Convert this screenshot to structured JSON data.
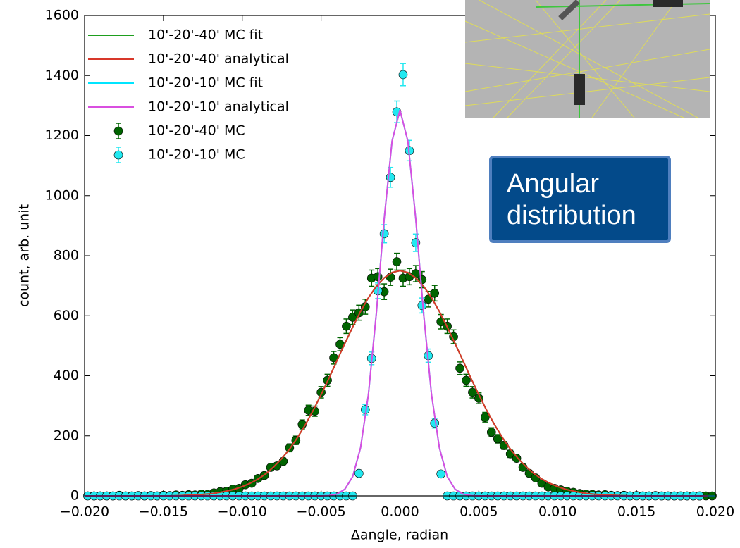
{
  "chart_data": {
    "type": "scatter",
    "xlabel": "Δangle, radian",
    "ylabel": "count, arb. unit",
    "annotation_lines": [
      "Angular",
      "distribution"
    ],
    "xlim": [
      -0.02,
      0.02
    ],
    "ylim": [
      0,
      1600
    ],
    "xticks": [
      {
        "value": -0.02,
        "label": "−0.020"
      },
      {
        "value": -0.015,
        "label": "−0.015"
      },
      {
        "value": -0.01,
        "label": "−0.010"
      },
      {
        "value": -0.005,
        "label": "−0.005"
      },
      {
        "value": 0,
        "label": "0.000"
      },
      {
        "value": 0.005,
        "label": "0.005"
      },
      {
        "value": 0.01,
        "label": "0.010"
      },
      {
        "value": 0.015,
        "label": "0.015"
      },
      {
        "value": 0.02,
        "label": "0.020"
      }
    ],
    "yticks": [
      0,
      200,
      400,
      600,
      800,
      1000,
      1200,
      1400,
      1600
    ],
    "legend": "upper left",
    "curve_x": [
      -0.02,
      -0.0195,
      -0.019,
      -0.0185,
      -0.018,
      -0.0175,
      -0.017,
      -0.0165,
      -0.016,
      -0.0155,
      -0.015,
      -0.0145,
      -0.014,
      -0.0135,
      -0.013,
      -0.0125,
      -0.012,
      -0.0115,
      -0.011,
      -0.0105,
      -0.01,
      -0.0095,
      -0.009,
      -0.0085,
      -0.008,
      -0.0075,
      -0.007,
      -0.0065,
      -0.006,
      -0.0055,
      -0.005,
      -0.0045,
      -0.004,
      -0.0035,
      -0.003,
      -0.0025,
      -0.002,
      -0.0015,
      -0.001,
      -0.0005,
      0,
      0.0005,
      0.001,
      0.0015,
      0.002,
      0.0025,
      0.003,
      0.0035,
      0.004,
      0.0045,
      0.005,
      0.0055,
      0.006,
      0.0065,
      0.007,
      0.0075,
      0.008,
      0.0085,
      0.009,
      0.0095,
      0.01,
      0.0105,
      0.011,
      0.0115,
      0.012,
      0.0125,
      0.013,
      0.0135,
      0.014,
      0.0145,
      0.015,
      0.0155,
      0.016,
      0.0165,
      0.017,
      0.0175,
      0.018,
      0.0185,
      0.019,
      0.0195,
      0.02
    ],
    "point_x": [
      -0.0198,
      -0.0194,
      -0.019,
      -0.0186,
      -0.0182,
      -0.0178,
      -0.0174,
      -0.017,
      -0.0166,
      -0.0162,
      -0.0158,
      -0.0154,
      -0.015,
      -0.0146,
      -0.0142,
      -0.0138,
      -0.0134,
      -0.013,
      -0.0126,
      -0.0122,
      -0.0118,
      -0.0114,
      -0.011,
      -0.0106,
      -0.0102,
      -0.0098,
      -0.0094,
      -0.009,
      -0.0086,
      -0.0082,
      -0.0078,
      -0.0074,
      -0.007,
      -0.0066,
      -0.0062,
      -0.0058,
      -0.0054,
      -0.005,
      -0.0046,
      -0.0042,
      -0.0038,
      -0.0034,
      -0.003,
      -0.0026,
      -0.0022,
      -0.0018,
      -0.0014,
      -0.001,
      -0.0006,
      -0.0002,
      0.0002,
      0.0006,
      0.001,
      0.0014,
      0.0018,
      0.0022,
      0.0026,
      0.003,
      0.0034,
      0.0038,
      0.0042,
      0.0046,
      0.005,
      0.0054,
      0.0058,
      0.0062,
      0.0066,
      0.007,
      0.0074,
      0.0078,
      0.0082,
      0.0086,
      0.009,
      0.0094,
      0.0098,
      0.0102,
      0.0106,
      0.011,
      0.0114,
      0.0118,
      0.0122,
      0.0126,
      0.013,
      0.0134,
      0.0138,
      0.0142,
      0.0146,
      0.015,
      0.0154,
      0.0158,
      0.0162,
      0.0166,
      0.017,
      0.0174,
      0.0178,
      0.0182,
      0.0186,
      0.019,
      0.0194,
      0.0198
    ],
    "series": [
      {
        "name": "10'-20'-40' MC fit",
        "color": "#1e9e1e",
        "style": "line",
        "values": [
          0,
          0,
          0,
          0,
          0,
          0,
          0,
          0,
          0,
          0,
          0,
          0,
          1,
          2,
          3,
          5,
          7,
          11,
          16,
          22,
          31,
          42,
          56,
          74,
          97,
          124,
          156,
          194,
          237,
          285,
          337,
          392,
          450,
          507,
          562,
          614,
          660,
          698,
          726,
          744,
          750,
          744,
          726,
          698,
          660,
          614,
          562,
          507,
          450,
          392,
          337,
          285,
          237,
          194,
          156,
          124,
          97,
          74,
          56,
          42,
          31,
          22,
          16,
          11,
          7,
          5,
          3,
          2,
          1,
          0,
          0,
          0,
          0,
          0,
          0,
          0,
          0,
          0,
          0,
          0,
          0
        ]
      },
      {
        "name": "10'-20'-40' analytical",
        "color": "#d8382a",
        "style": "line",
        "values": [
          0,
          0,
          0,
          0,
          0,
          0,
          0,
          0,
          0,
          0,
          0,
          0,
          1,
          2,
          3,
          5,
          7,
          11,
          16,
          22,
          31,
          42,
          56,
          74,
          97,
          124,
          156,
          194,
          237,
          285,
          337,
          392,
          450,
          507,
          562,
          614,
          660,
          698,
          726,
          744,
          750,
          744,
          726,
          698,
          660,
          614,
          562,
          507,
          450,
          392,
          337,
          285,
          237,
          194,
          156,
          124,
          97,
          74,
          56,
          42,
          31,
          22,
          16,
          11,
          7,
          5,
          3,
          2,
          1,
          0,
          0,
          0,
          0,
          0,
          0,
          0,
          0,
          0,
          0,
          0,
          0
        ]
      },
      {
        "name": "10'-20'-10' MC fit",
        "color": "#00e5ff",
        "style": "line",
        "values": [
          0,
          0,
          0,
          0,
          0,
          0,
          0,
          0,
          0,
          0,
          0,
          0,
          0,
          0,
          0,
          0,
          0,
          0,
          0,
          0,
          0,
          0,
          0,
          0,
          0,
          0,
          0,
          0,
          0,
          0,
          0,
          1,
          6,
          22,
          64,
          160,
          338,
          607,
          923,
          1182,
          1285,
          1182,
          923,
          607,
          338,
          160,
          64,
          22,
          6,
          1,
          0,
          0,
          0,
          0,
          0,
          0,
          0,
          0,
          0,
          0,
          0,
          0,
          0,
          0,
          0,
          0,
          0,
          0,
          0,
          0,
          0,
          0,
          0,
          0,
          0,
          0,
          0,
          0,
          0,
          0,
          0
        ]
      },
      {
        "name": "10'-20'-10' analytical",
        "color": "#d94fe0",
        "style": "line",
        "values": [
          0,
          0,
          0,
          0,
          0,
          0,
          0,
          0,
          0,
          0,
          0,
          0,
          0,
          0,
          0,
          0,
          0,
          0,
          0,
          0,
          0,
          0,
          0,
          0,
          0,
          0,
          0,
          0,
          0,
          0,
          0,
          1,
          6,
          22,
          64,
          160,
          338,
          607,
          923,
          1182,
          1285,
          1182,
          923,
          607,
          338,
          160,
          64,
          22,
          6,
          1,
          0,
          0,
          0,
          0,
          0,
          0,
          0,
          0,
          0,
          0,
          0,
          0,
          0,
          0,
          0,
          0,
          0,
          0,
          0,
          0,
          0,
          0,
          0,
          0,
          0,
          0,
          0,
          0,
          0,
          0
        ]
      },
      {
        "name": "10'-20'-40' MC",
        "color": "#006400",
        "style": "errorbar",
        "values": [
          0,
          0,
          0,
          0,
          0,
          2,
          0,
          0,
          1,
          0,
          1,
          0,
          2,
          1,
          3,
          2,
          4,
          3,
          6,
          5,
          10,
          14,
          15,
          22,
          25,
          37,
          42,
          58,
          68,
          95,
          100,
          115,
          160,
          185,
          238,
          285,
          282,
          345,
          385,
          460,
          505,
          565,
          595,
          610,
          630,
          725,
          730,
          680,
          728,
          780,
          725,
          730,
          740,
          720,
          655,
          675,
          580,
          565,
          530,
          425,
          385,
          345,
          325,
          262,
          212,
          190,
          168,
          140,
          125,
          95,
          75,
          60,
          42,
          30,
          25,
          20,
          15,
          12,
          8,
          6,
          5,
          3,
          4,
          2,
          1,
          2,
          0,
          1,
          0,
          0,
          1,
          0,
          0,
          0,
          0,
          0,
          0,
          0,
          0,
          0
        ],
        "errors": [
          0,
          0,
          0,
          0,
          0,
          1,
          0,
          0,
          1,
          0,
          1,
          0,
          1,
          1,
          2,
          1,
          2,
          2,
          2,
          2,
          3,
          4,
          4,
          5,
          5,
          6,
          6,
          8,
          8,
          10,
          10,
          11,
          13,
          14,
          15,
          17,
          17,
          19,
          20,
          21,
          22,
          24,
          24,
          25,
          25,
          27,
          27,
          26,
          27,
          28,
          27,
          27,
          27,
          27,
          26,
          26,
          24,
          24,
          23,
          21,
          20,
          19,
          18,
          16,
          15,
          14,
          13,
          12,
          11,
          10,
          9,
          8,
          6,
          5,
          5,
          4,
          4,
          3,
          3,
          2,
          2,
          2,
          2,
          1,
          1,
          1,
          0,
          1,
          0,
          0,
          1,
          0,
          0,
          0,
          0,
          0,
          0,
          0,
          0,
          0
        ]
      },
      {
        "name": "10'-20'-10' MC",
        "color": "#22e8f0",
        "style": "errorbar",
        "values": [
          0,
          0,
          0,
          0,
          0,
          0,
          0,
          0,
          0,
          0,
          0,
          0,
          0,
          0,
          0,
          0,
          0,
          0,
          0,
          0,
          0,
          0,
          0,
          0,
          0,
          0,
          0,
          0,
          0,
          0,
          0,
          0,
          0,
          0,
          0,
          0,
          0,
          0,
          0,
          0,
          0,
          0,
          0,
          75,
          287,
          458,
          683,
          873,
          1061,
          1279,
          1403,
          1150,
          843,
          634,
          467,
          242,
          73,
          0,
          0,
          0,
          0,
          0,
          0,
          0,
          0,
          0,
          0,
          0,
          0,
          0,
          0,
          0,
          0,
          0,
          0,
          0,
          0,
          0,
          0,
          0,
          0,
          0,
          0,
          0,
          0,
          0,
          0,
          0,
          0,
          0,
          0,
          0,
          0,
          0,
          0,
          0,
          0,
          0
        ],
        "errors": [
          0,
          0,
          0,
          0,
          0,
          0,
          0,
          0,
          0,
          0,
          0,
          0,
          0,
          0,
          0,
          0,
          0,
          0,
          0,
          0,
          0,
          0,
          0,
          0,
          0,
          0,
          0,
          0,
          0,
          0,
          0,
          0,
          0,
          0,
          0,
          0,
          0,
          0,
          0,
          0,
          0,
          0,
          0,
          9,
          17,
          21,
          26,
          30,
          33,
          36,
          37,
          34,
          29,
          25,
          22,
          16,
          9,
          0,
          0,
          0,
          0,
          0,
          0,
          0,
          0,
          0,
          0,
          0,
          0,
          0,
          0,
          0,
          0,
          0,
          0,
          0,
          0,
          0,
          0,
          0,
          0,
          0,
          0,
          0,
          0,
          0,
          0,
          0,
          0,
          0,
          0,
          0,
          0,
          0,
          0,
          0,
          0,
          0
        ]
      }
    ]
  }
}
